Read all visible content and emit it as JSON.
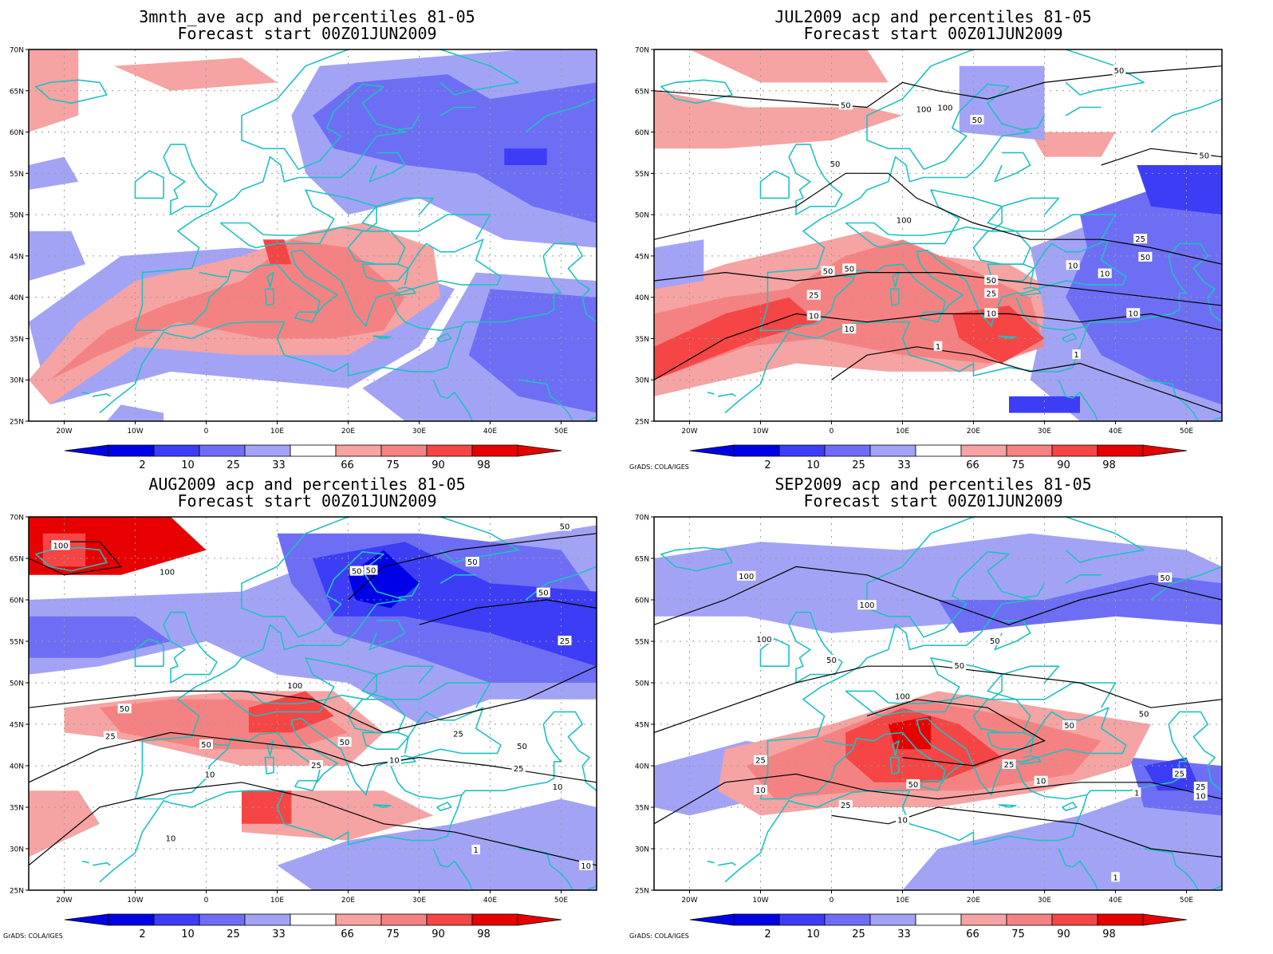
{
  "palette": {
    "c2": "#0000e6",
    "c10": "#3d3df5",
    "c25": "#6e6ef5",
    "c33": "#a3a3f5",
    "c66": "#f5a3a3",
    "c75": "#f58282",
    "c90": "#f54545",
    "c98": "#e60000",
    "coast": "#20c0c0",
    "contour": "#000000",
    "grid": "#9a9a9a"
  },
  "axes": {
    "lat_labels": [
      "25N",
      "30N",
      "35N",
      "40N",
      "45N",
      "50N",
      "55N",
      "60N",
      "65N",
      "70N"
    ],
    "lon_labels": [
      "20W",
      "10W",
      "0",
      "10E",
      "20E",
      "30E",
      "40E",
      "50E"
    ]
  },
  "colorbar": {
    "labels": [
      "2",
      "10",
      "25",
      "33",
      "66",
      "75",
      "90",
      "98"
    ]
  },
  "credit": "GrADS: COLA/IGES",
  "panels": [
    {
      "line1": "3mnth_ave acp and percentiles 81-05",
      "line2": "Forecast start 00Z01JUN2009",
      "show_credit": false,
      "contour_labels": []
    },
    {
      "line1": "JUL2009 acp and percentiles 81-05",
      "line2": "Forecast start 00Z01JUN2009",
      "show_credit": true,
      "contour_labels": [
        {
          "text": "50",
          "lon": 2,
          "lat": 63.3
        },
        {
          "text": "100",
          "lon": 13,
          "lat": 62.8
        },
        {
          "text": "100",
          "lon": 16,
          "lat": 63
        },
        {
          "text": "50",
          "lon": 20.5,
          "lat": 61.5
        },
        {
          "text": "50",
          "lon": 40.5,
          "lat": 67.5
        },
        {
          "text": "50",
          "lon": 0.5,
          "lat": 56.2
        },
        {
          "text": "100",
          "lon": 10.2,
          "lat": 49.4
        },
        {
          "text": "50",
          "lon": 52.5,
          "lat": 57.2
        },
        {
          "text": "25",
          "lon": 43.5,
          "lat": 47.1
        },
        {
          "text": "10",
          "lon": 34,
          "lat": 43.9
        },
        {
          "text": "50",
          "lon": 44.2,
          "lat": 44.9
        },
        {
          "text": "10",
          "lon": 38.5,
          "lat": 42.9
        },
        {
          "text": "50",
          "lon": -0.5,
          "lat": 43.2
        },
        {
          "text": "50",
          "lon": 2.5,
          "lat": 43.5
        },
        {
          "text": "50",
          "lon": 22.5,
          "lat": 42.1
        },
        {
          "text": "25",
          "lon": -2.5,
          "lat": 40.3
        },
        {
          "text": "25",
          "lon": 22.5,
          "lat": 40.5
        },
        {
          "text": "10",
          "lon": -2.5,
          "lat": 37.8
        },
        {
          "text": "10",
          "lon": 22.5,
          "lat": 38.1
        },
        {
          "text": "10",
          "lon": 42.5,
          "lat": 38.1
        },
        {
          "text": "10",
          "lon": 2.5,
          "lat": 36.2
        },
        {
          "text": "1",
          "lon": 15,
          "lat": 34.1
        },
        {
          "text": "1",
          "lon": 34.5,
          "lat": 33.1
        }
      ]
    },
    {
      "line1": "AUG2009 acp and percentiles 81-05",
      "line2": "Forecast start 00Z01JUN2009",
      "show_credit": true,
      "contour_labels": [
        {
          "text": "100",
          "lon": -20.5,
          "lat": 66.6
        },
        {
          "text": "100",
          "lon": -5.5,
          "lat": 63.4
        },
        {
          "text": "50",
          "lon": 21.2,
          "lat": 63.5
        },
        {
          "text": "50",
          "lon": 23.2,
          "lat": 63.6
        },
        {
          "text": "50",
          "lon": 37.5,
          "lat": 64.6
        },
        {
          "text": "50",
          "lon": 50.5,
          "lat": 68.9
        },
        {
          "text": "50",
          "lon": 47.5,
          "lat": 60.9
        },
        {
          "text": "25",
          "lon": 50.5,
          "lat": 55.1
        },
        {
          "text": "100",
          "lon": 12.5,
          "lat": 49.7
        },
        {
          "text": "50",
          "lon": -11.5,
          "lat": 46.9
        },
        {
          "text": "25",
          "lon": -13.5,
          "lat": 43.6
        },
        {
          "text": "50",
          "lon": 0,
          "lat": 42.6
        },
        {
          "text": "50",
          "lon": 19.5,
          "lat": 42.9
        },
        {
          "text": "25",
          "lon": 35.5,
          "lat": 43.9
        },
        {
          "text": "50",
          "lon": 44.5,
          "lat": 42.4
        },
        {
          "text": "25",
          "lon": 15.5,
          "lat": 40.1
        },
        {
          "text": "10",
          "lon": 26.5,
          "lat": 40.7
        },
        {
          "text": "25",
          "lon": 44,
          "lat": 39.7
        },
        {
          "text": "10",
          "lon": 0.5,
          "lat": 39
        },
        {
          "text": "10",
          "lon": 49.5,
          "lat": 37.5
        },
        {
          "text": "10",
          "lon": -5,
          "lat": 31.3
        },
        {
          "text": "1",
          "lon": 38,
          "lat": 29.9
        },
        {
          "text": "10",
          "lon": 53.5,
          "lat": 28
        }
      ]
    },
    {
      "line1": "SEP2009 acp and percentiles 81-05",
      "line2": "Forecast start 00Z01JUN2009",
      "show_credit": true,
      "contour_labels": [
        {
          "text": "100",
          "lon": -12,
          "lat": 62.9
        },
        {
          "text": "100",
          "lon": 5,
          "lat": 59.4
        },
        {
          "text": "100",
          "lon": -9.5,
          "lat": 55.3
        },
        {
          "text": "50",
          "lon": 47,
          "lat": 62.7
        },
        {
          "text": "50",
          "lon": 23,
          "lat": 55.1
        },
        {
          "text": "50",
          "lon": 0,
          "lat": 52.8
        },
        {
          "text": "50",
          "lon": 18,
          "lat": 52.1
        },
        {
          "text": "100",
          "lon": 10,
          "lat": 48.4
        },
        {
          "text": "50",
          "lon": 44,
          "lat": 46.3
        },
        {
          "text": "50",
          "lon": 33.5,
          "lat": 44.9
        },
        {
          "text": "25",
          "lon": -10,
          "lat": 40.7
        },
        {
          "text": "25",
          "lon": 25,
          "lat": 40.2
        },
        {
          "text": "25",
          "lon": 49,
          "lat": 39.1
        },
        {
          "text": "10",
          "lon": -10,
          "lat": 37.1
        },
        {
          "text": "50",
          "lon": 11.5,
          "lat": 37.8
        },
        {
          "text": "10",
          "lon": 29.5,
          "lat": 38.2
        },
        {
          "text": "25",
          "lon": 52,
          "lat": 37.5
        },
        {
          "text": "10",
          "lon": 52,
          "lat": 36.4
        },
        {
          "text": "1",
          "lon": 43,
          "lat": 36.8
        },
        {
          "text": "25",
          "lon": 2,
          "lat": 35.3
        },
        {
          "text": "10",
          "lon": 10,
          "lat": 33.5
        },
        {
          "text": "1",
          "lon": 40,
          "lat": 26.6
        }
      ]
    }
  ]
}
